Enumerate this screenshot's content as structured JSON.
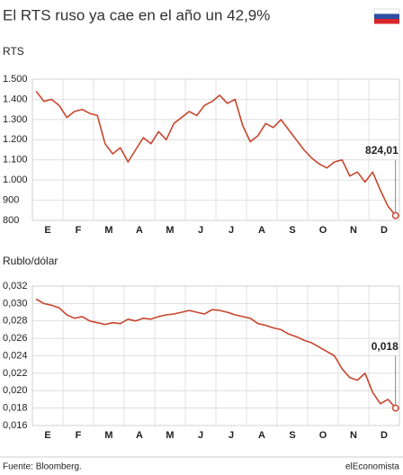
{
  "title": "El RTS ruso ya cae en el año un 42,9%",
  "source": "Fuente: Bloomberg.",
  "brand": "elEconomista",
  "chart_data": [
    {
      "type": "line",
      "title": "RTS",
      "color": "#c8452c",
      "grid": true,
      "categories": [
        null,
        null,
        "E",
        null,
        null,
        null,
        "F",
        null,
        null,
        null,
        "M",
        null,
        null,
        null,
        "A",
        null,
        null,
        null,
        "M",
        null,
        null,
        null,
        "J",
        null,
        null,
        null,
        "J",
        null,
        null,
        null,
        "A",
        null,
        null,
        null,
        "S",
        null,
        null,
        null,
        "O",
        null,
        null,
        null,
        "N",
        null,
        null,
        null,
        "D",
        null
      ],
      "values": [
        1440,
        1390,
        1400,
        1370,
        1310,
        1340,
        1350,
        1330,
        1320,
        1180,
        1130,
        1160,
        1090,
        1150,
        1210,
        1180,
        1240,
        1200,
        1280,
        1310,
        1340,
        1320,
        1370,
        1390,
        1420,
        1380,
        1400,
        1270,
        1190,
        1220,
        1280,
        1260,
        1300,
        1250,
        1200,
        1150,
        1110,
        1080,
        1060,
        1090,
        1100,
        1020,
        1040,
        990,
        1040,
        950,
        870,
        824.01
      ],
      "ylim": [
        800,
        1500
      ],
      "yticks": [
        800,
        {
          "value": 900,
          "label": "900"
        },
        {
          "value": 1000,
          "label": "1.000"
        },
        {
          "value": 1100,
          "label": "1.100"
        },
        {
          "value": 1200,
          "label": "1.200"
        },
        {
          "value": 1300,
          "label": "1.300"
        },
        {
          "value": 1400,
          "label": "1.400"
        },
        {
          "value": 1500,
          "label": "1.500"
        }
      ],
      "annotation": {
        "value": 824.01,
        "label": "824,01"
      }
    },
    {
      "type": "line",
      "title": "Rublo/dólar",
      "color": "#c8452c",
      "grid": true,
      "categories": [
        null,
        null,
        "E",
        null,
        null,
        null,
        "F",
        null,
        null,
        null,
        "M",
        null,
        null,
        null,
        "A",
        null,
        null,
        null,
        "M",
        null,
        null,
        null,
        "J",
        null,
        null,
        null,
        "J",
        null,
        null,
        null,
        "A",
        null,
        null,
        null,
        "S",
        null,
        null,
        null,
        "O",
        null,
        null,
        null,
        "N",
        null,
        null,
        null,
        "D",
        null
      ],
      "values": [
        0.0305,
        0.03,
        0.0298,
        0.0295,
        0.0287,
        0.0283,
        0.0285,
        0.028,
        0.0278,
        0.0276,
        0.0278,
        0.0277,
        0.0282,
        0.028,
        0.0283,
        0.0282,
        0.0285,
        0.0287,
        0.0288,
        0.029,
        0.0292,
        0.029,
        0.0288,
        0.0293,
        0.0292,
        0.029,
        0.0287,
        0.0285,
        0.0283,
        0.0277,
        0.0275,
        0.0272,
        0.027,
        0.0265,
        0.0262,
        0.0258,
        0.0255,
        0.025,
        0.0245,
        0.024,
        0.0225,
        0.0215,
        0.0212,
        0.022,
        0.0198,
        0.0185,
        0.019,
        0.018
      ],
      "ylim": [
        0.016,
        0.032
      ],
      "yticks": [
        {
          "value": 0.016,
          "label": "0,016"
        },
        {
          "value": 0.018,
          "label": "0,018"
        },
        {
          "value": 0.02,
          "label": "0,020"
        },
        {
          "value": 0.022,
          "label": "0,022"
        },
        {
          "value": 0.024,
          "label": "0,024"
        },
        {
          "value": 0.026,
          "label": "0,026"
        },
        {
          "value": 0.028,
          "label": "0,028"
        },
        {
          "value": 0.03,
          "label": "0,030"
        },
        {
          "value": 0.032,
          "label": "0,032"
        }
      ],
      "annotation": {
        "value": 0.018,
        "label": "0,018"
      }
    }
  ]
}
